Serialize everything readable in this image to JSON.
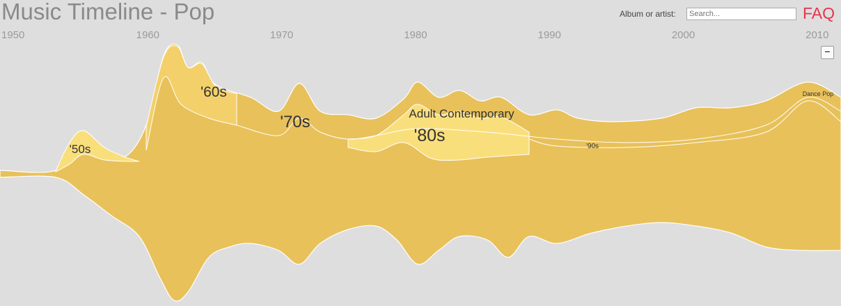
{
  "header": {
    "title": "Music Timeline - Pop",
    "search_label": "Album or artist:",
    "search_placeholder": "Search...",
    "faq": "FAQ",
    "zoom_button": "−"
  },
  "timeline": {
    "years": [
      1950,
      1960,
      1970,
      1980,
      1990,
      2000,
      2010
    ]
  },
  "layers": {
    "fifties": "'50s",
    "sixties": "'60s",
    "seventies": "'70s",
    "adult_contemporary": "Adult Contemporary",
    "eighties": "'80s",
    "nineties": "'90s",
    "dance_pop": "Dance Pop"
  }
}
